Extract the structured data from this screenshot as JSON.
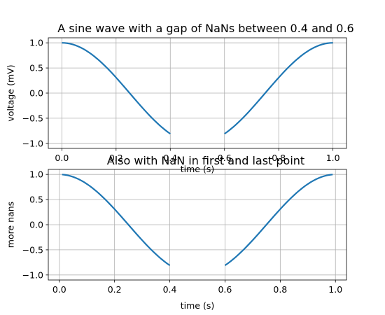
{
  "chart_data": [
    {
      "type": "line",
      "title": "A sine wave with a gap of NaNs between 0.4 and 0.6",
      "xlabel": "time (s)",
      "ylabel": "voltage (mV)",
      "xlim": [
        -0.05,
        1.05
      ],
      "ylim": [
        -1.1,
        1.1
      ],
      "grid": true,
      "xticks": [
        0.0,
        0.2,
        0.4,
        0.6,
        0.8,
        1.0
      ],
      "yticks": [
        1.0,
        0.5,
        0.0,
        -0.5,
        -1.0
      ],
      "x_tick_labels": [
        "0.0",
        "0.2",
        "0.4",
        "0.6",
        "0.8",
        "1.0"
      ],
      "y_tick_labels": [
        "1.0",
        "0.5",
        "0.0",
        "−0.5",
        "−1.0"
      ],
      "series": [
        {
          "color": "#1f77b4",
          "function": "y = cos(2*pi*x)",
          "x_step": 0.01,
          "segments": [
            [
              0.0,
              0.4
            ],
            [
              0.6,
              1.0
            ]
          ]
        }
      ]
    },
    {
      "type": "line",
      "title": "Also with NaN in first and last point",
      "xlabel": "time (s)",
      "ylabel": "more nans",
      "xlim": [
        -0.04,
        1.04
      ],
      "ylim": [
        -1.1,
        1.1
      ],
      "grid": true,
      "xticks": [
        0.0,
        0.2,
        0.4,
        0.6,
        0.8,
        1.0
      ],
      "yticks": [
        1.0,
        0.5,
        0.0,
        -0.5,
        -1.0
      ],
      "x_tick_labels": [
        "0.0",
        "0.2",
        "0.4",
        "0.6",
        "0.8",
        "1.0"
      ],
      "y_tick_labels": [
        "1.0",
        "0.5",
        "0.0",
        "−0.5",
        "−1.0"
      ],
      "series": [
        {
          "color": "#1f77b4",
          "function": "y = cos(2*pi*x)",
          "x_step": 0.01,
          "segments": [
            [
              0.01,
              0.4
            ],
            [
              0.6,
              0.99
            ]
          ]
        }
      ]
    }
  ]
}
